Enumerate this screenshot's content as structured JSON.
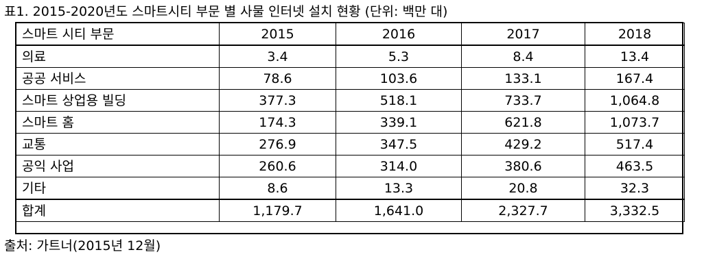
{
  "caption": "표1. 2015-2020년도 스마트시티 부문 별 사물 인터넷 설치 현황 (단위: 백만 대)",
  "source": "출처: 가트너(2015년 12월)",
  "table": {
    "header": [
      "스마트 시티 부문",
      "2015",
      "2016",
      "2017",
      "2018"
    ],
    "rows": [
      [
        "의료",
        "3.4",
        "5.3",
        "8.4",
        "13.4"
      ],
      [
        "공공 서비스",
        "78.6",
        "103.6",
        "133.1",
        "167.4"
      ],
      [
        "스마트 상업용 빌딩",
        "377.3",
        "518.1",
        "733.7",
        "1,064.8"
      ],
      [
        "스마트 홈",
        "174.3",
        "339.1",
        "621.8",
        "1,073.7"
      ],
      [
        "교통",
        "276.9",
        "347.5",
        "429.2",
        "517.4"
      ],
      [
        "공익 사업",
        "260.6",
        "314.0",
        "380.6",
        "463.5"
      ],
      [
        "기타",
        "8.6",
        "13.3",
        "20.8",
        "32.3"
      ]
    ],
    "total": [
      "합계",
      "1,179.7",
      "1,641.0",
      "2,327.7",
      "3,332.5"
    ]
  }
}
